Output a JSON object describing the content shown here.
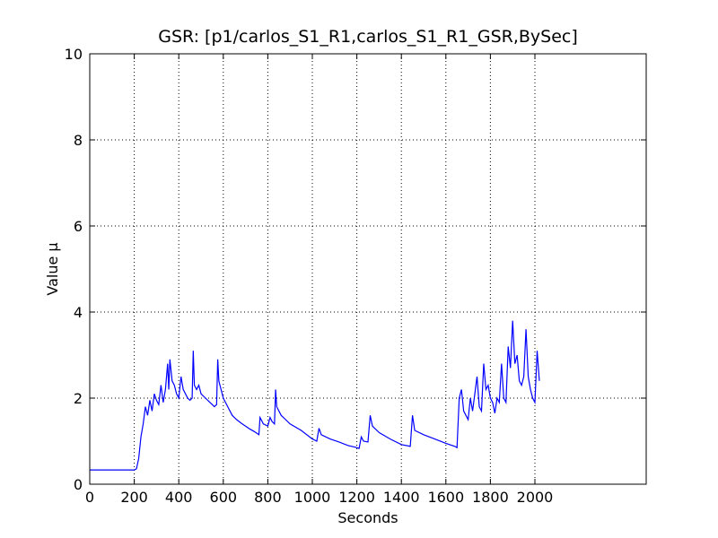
{
  "chart_data": {
    "type": "line",
    "title": "GSR: [p1/carlos_S1_R1,carlos_S1_R1_GSR,BySec]",
    "x_label": "Seconds",
    "y_label": "Value µ",
    "xlim": [
      0,
      2500
    ],
    "ylim": [
      0,
      10
    ],
    "xticks": [
      0,
      200,
      400,
      600,
      800,
      1000,
      1200,
      1400,
      1600,
      1800,
      2000
    ],
    "yticks": [
      0,
      2,
      4,
      6,
      8,
      10
    ],
    "grid": true,
    "x": [
      0,
      200,
      210,
      220,
      230,
      240,
      250,
      260,
      270,
      280,
      290,
      300,
      310,
      320,
      330,
      340,
      350,
      355,
      360,
      370,
      380,
      390,
      400,
      410,
      420,
      430,
      440,
      450,
      460,
      465,
      470,
      480,
      490,
      500,
      520,
      540,
      560,
      570,
      575,
      580,
      600,
      620,
      640,
      660,
      680,
      700,
      720,
      740,
      760,
      765,
      780,
      800,
      810,
      820,
      830,
      835,
      840,
      860,
      880,
      900,
      950,
      1000,
      1020,
      1030,
      1040,
      1080,
      1120,
      1160,
      1200,
      1210,
      1220,
      1230,
      1250,
      1260,
      1270,
      1300,
      1350,
      1400,
      1440,
      1450,
      1460,
      1500,
      1550,
      1600,
      1640,
      1650,
      1660,
      1670,
      1680,
      1690,
      1700,
      1710,
      1720,
      1740,
      1750,
      1760,
      1770,
      1780,
      1790,
      1800,
      1810,
      1820,
      1830,
      1840,
      1850,
      1860,
      1870,
      1880,
      1890,
      1900,
      1910,
      1920,
      1930,
      1940,
      1950,
      1960,
      1970,
      1980,
      1990,
      2000,
      2010,
      2020
    ],
    "series": [
      {
        "color": "#0000ff",
        "values": [
          0.33,
          0.33,
          0.36,
          0.6,
          1.1,
          1.4,
          1.8,
          1.6,
          1.95,
          1.7,
          2.1,
          1.95,
          1.85,
          2.3,
          1.9,
          2.2,
          2.8,
          2.2,
          2.9,
          2.4,
          2.3,
          2.1,
          2.0,
          2.5,
          2.2,
          2.1,
          2.0,
          1.95,
          2.0,
          3.1,
          2.3,
          2.2,
          2.3,
          2.1,
          2.0,
          1.9,
          1.8,
          1.85,
          2.9,
          2.4,
          2.0,
          1.8,
          1.6,
          1.5,
          1.42,
          1.35,
          1.28,
          1.22,
          1.15,
          1.55,
          1.4,
          1.35,
          1.55,
          1.45,
          1.4,
          2.2,
          1.8,
          1.6,
          1.5,
          1.4,
          1.25,
          1.05,
          1.0,
          1.3,
          1.15,
          1.05,
          0.98,
          0.9,
          0.85,
          0.83,
          1.1,
          1.0,
          0.98,
          1.6,
          1.35,
          1.2,
          1.05,
          0.92,
          0.88,
          1.6,
          1.25,
          1.15,
          1.05,
          0.95,
          0.88,
          0.85,
          2.0,
          2.2,
          1.7,
          1.6,
          1.5,
          2.0,
          1.7,
          2.5,
          1.8,
          1.7,
          2.8,
          2.2,
          2.3,
          2.0,
          1.9,
          1.65,
          2.0,
          1.9,
          2.8,
          2.0,
          1.9,
          3.2,
          2.7,
          3.8,
          2.8,
          3.0,
          2.4,
          2.3,
          2.5,
          3.6,
          2.5,
          2.2,
          2.0,
          1.9,
          3.1,
          2.4
        ]
      }
    ]
  }
}
